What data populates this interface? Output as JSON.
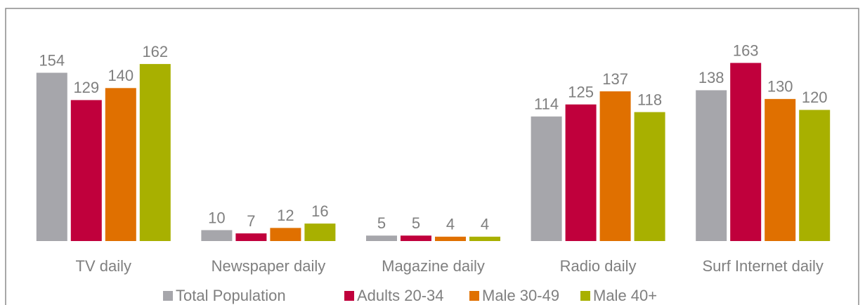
{
  "chart_data": {
    "type": "bar",
    "categories": [
      "TV daily",
      "Newspaper daily",
      "Magazine daily",
      "Radio daily",
      "Surf Internet daily"
    ],
    "series": [
      {
        "name": "Total Population",
        "color": "#a6a6ab",
        "values": [
          154,
          10,
          5,
          114,
          138
        ]
      },
      {
        "name": "Adults 20-34",
        "color": "#c0003c",
        "values": [
          129,
          7,
          5,
          125,
          163
        ]
      },
      {
        "name": "Male 30-49",
        "color": "#e07000",
        "values": [
          140,
          12,
          4,
          137,
          130
        ]
      },
      {
        "name": "Male 40+",
        "color": "#a8b000",
        "values": [
          162,
          16,
          4,
          118,
          120
        ]
      }
    ],
    "ylim": [
      0,
      200
    ]
  }
}
